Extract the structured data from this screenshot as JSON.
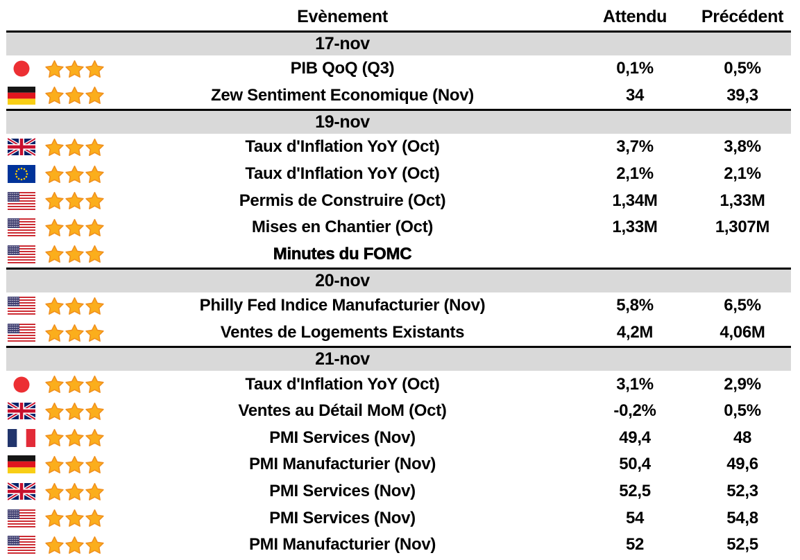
{
  "header": {
    "event": "Evènement",
    "expected": "Attendu",
    "previous": "Précédent"
  },
  "colors": {
    "band_gray": "#d9d9d9",
    "rule_black": "#000000",
    "star_fill": "#FBAE1C",
    "star_stroke": "#F0901E",
    "text": "#000000"
  },
  "sections": [
    {
      "date": "17-nov",
      "rows": [
        {
          "country": "japan",
          "stars": 3,
          "event": "PIB QoQ (Q3)",
          "expected": "0,1%",
          "previous": "0,5%",
          "emphasis": false
        },
        {
          "country": "germany",
          "stars": 3,
          "event": "Zew Sentiment Economique (Nov)",
          "expected": "34",
          "previous": "39,3",
          "emphasis": false
        }
      ]
    },
    {
      "date": "19-nov",
      "rows": [
        {
          "country": "uk",
          "stars": 3,
          "event": "Taux d'Inflation YoY (Oct)",
          "expected": "3,7%",
          "previous": "3,8%",
          "emphasis": false
        },
        {
          "country": "eu",
          "stars": 3,
          "event": "Taux d'Inflation YoY (Oct)",
          "expected": "2,1%",
          "previous": "2,1%",
          "emphasis": false
        },
        {
          "country": "usa",
          "stars": 3,
          "event": "Permis de Construire (Oct)",
          "expected": "1,34M",
          "previous": "1,33M",
          "emphasis": false
        },
        {
          "country": "usa",
          "stars": 3,
          "event": "Mises en Chantier (Oct)",
          "expected": "1,33M",
          "previous": "1,307M",
          "emphasis": false
        },
        {
          "country": "usa",
          "stars": 3,
          "event": "Minutes du FOMC",
          "expected": "",
          "previous": "",
          "emphasis": true
        }
      ]
    },
    {
      "date": "20-nov",
      "rows": [
        {
          "country": "usa",
          "stars": 3,
          "event": "Philly Fed Indice Manufacturier (Nov)",
          "expected": "5,8%",
          "previous": "6,5%",
          "emphasis": false
        },
        {
          "country": "usa",
          "stars": 3,
          "event": "Ventes de Logements Existants",
          "expected": "4,2M",
          "previous": "4,06M",
          "emphasis": false
        }
      ]
    },
    {
      "date": "21-nov",
      "rows": [
        {
          "country": "japan",
          "stars": 3,
          "event": "Taux d'Inflation YoY (Oct)",
          "expected": "3,1%",
          "previous": "2,9%",
          "emphasis": false
        },
        {
          "country": "uk",
          "stars": 3,
          "event": "Ventes au Détail MoM (Oct)",
          "expected": "-0,2%",
          "previous": "0,5%",
          "emphasis": false
        },
        {
          "country": "france",
          "stars": 3,
          "event": "PMI Services (Nov)",
          "expected": "49,4",
          "previous": "48",
          "emphasis": false
        },
        {
          "country": "germany",
          "stars": 3,
          "event": "PMI Manufacturier (Nov)",
          "expected": "50,4",
          "previous": "49,6",
          "emphasis": false
        },
        {
          "country": "uk",
          "stars": 3,
          "event": "PMI Services (Nov)",
          "expected": "52,5",
          "previous": "52,3",
          "emphasis": false
        },
        {
          "country": "usa",
          "stars": 3,
          "event": "PMI Services (Nov)",
          "expected": "54",
          "previous": "54,8",
          "emphasis": false
        },
        {
          "country": "usa",
          "stars": 3,
          "event": "PMI Manufacturier (Nov)",
          "expected": "52",
          "previous": "52,5",
          "emphasis": false
        }
      ]
    }
  ]
}
